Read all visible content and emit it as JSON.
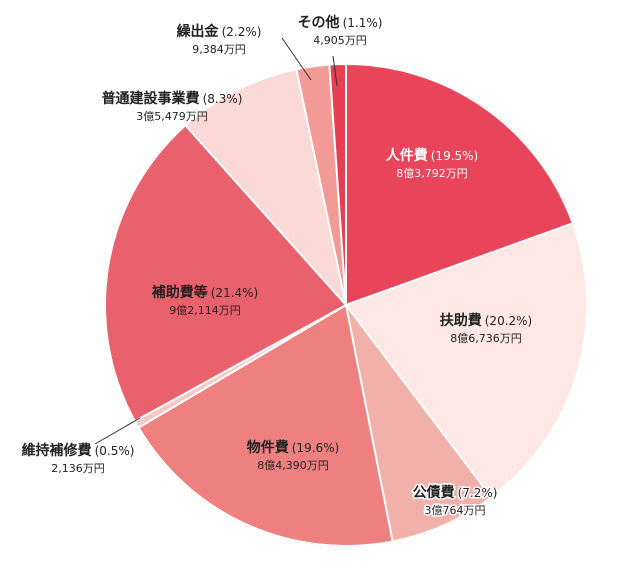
{
  "chart_data": {
    "type": "pie",
    "title": "",
    "start_angle_deg": 0,
    "direction": "clockwise",
    "slices": [
      {
        "name": "人件費",
        "pct_label": "(19.5%)",
        "value_label": "8億3,792万円",
        "value": 19.5,
        "color": "#e8455a",
        "text_color": "#ffffff"
      },
      {
        "name": "扶助費",
        "pct_label": "(20.2%)",
        "value_label": "8億6,736万円",
        "value": 20.2,
        "color": "#fde8e4",
        "text_color": "#222222"
      },
      {
        "name": "公債費",
        "pct_label": "(7.2%)",
        "value_label": "3億764万円",
        "value": 7.2,
        "color": "#f2b0aa",
        "text_color": "#222222"
      },
      {
        "name": "物件費",
        "pct_label": "(19.6%)",
        "value_label": "8億4,390万円",
        "value": 19.6,
        "color": "#ee8080",
        "text_color": "#222222"
      },
      {
        "name": "維持補修費",
        "pct_label": "(0.5%)",
        "value_label": "2,136万円",
        "value": 0.5,
        "color": "#f6c8c4",
        "text_color": "#222222"
      },
      {
        "name": "補助費等",
        "pct_label": "(21.4%)",
        "value_label": "9億2,114万円",
        "value": 21.4,
        "color": "#e9616c",
        "text_color": "#222222"
      },
      {
        "name": "普通建設事業費",
        "pct_label": "(8.3%)",
        "value_label": "3億5,479万円",
        "value": 8.3,
        "color": "#fad9d6",
        "text_color": "#222222"
      },
      {
        "name": "繰出金",
        "pct_label": "(2.2%)",
        "value_label": "9,384万円",
        "value": 2.2,
        "color": "#f29a96",
        "text_color": "#222222"
      },
      {
        "name": "その他",
        "pct_label": "(1.1%)",
        "value_label": "4,905万円",
        "value": 1.1,
        "color": "#e63e52",
        "text_color": "#222222"
      }
    ]
  }
}
